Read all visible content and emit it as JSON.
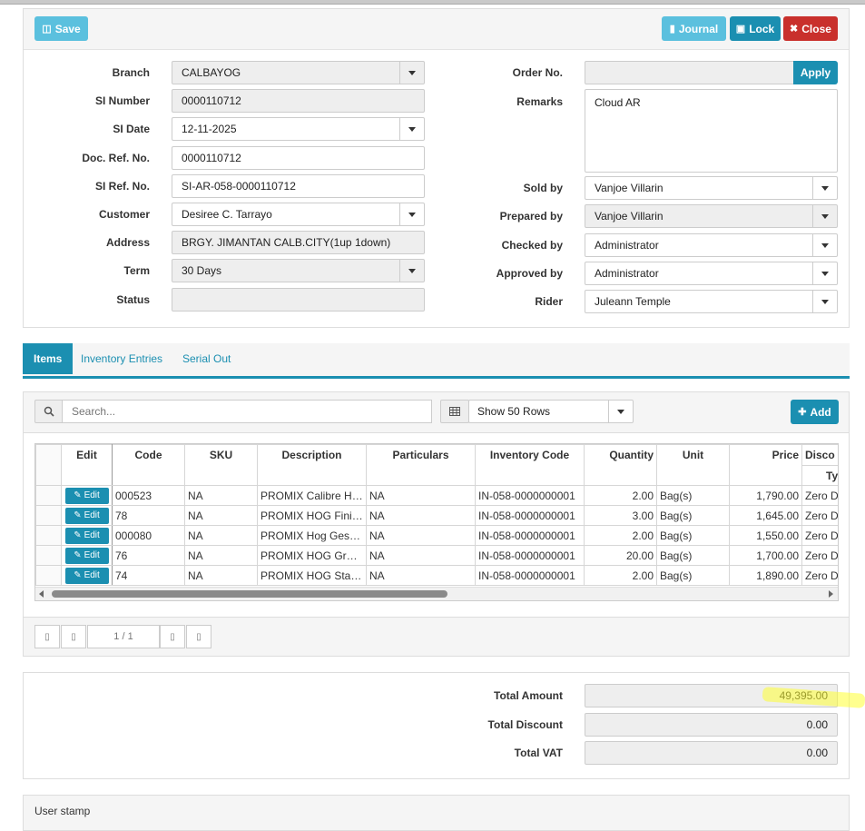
{
  "toolbar": {
    "save": "Save",
    "journal": "Journal",
    "lock": "Lock",
    "close": "Close"
  },
  "form": {
    "branch_label": "Branch",
    "branch": "CALBAYOG",
    "si_number_label": "SI Number",
    "si_number": "0000110712",
    "si_date_label": "SI Date",
    "si_date": "12-11-2025",
    "doc_ref_label": "Doc. Ref. No.",
    "doc_ref": "0000110712",
    "si_ref_label": "SI Ref. No.",
    "si_ref": "SI-AR-058-0000110712",
    "customer_label": "Customer",
    "customer": "Desiree C. Tarrayo",
    "address_label": "Address",
    "address": "BRGY. JIMANTAN CALB.CITY(1up 1down)",
    "term_label": "Term",
    "term": "30 Days",
    "status_label": "Status",
    "status": "",
    "order_no_label": "Order No.",
    "order_no": "",
    "apply": "Apply",
    "remarks_label": "Remarks",
    "remarks": "Cloud AR",
    "sold_by_label": "Sold by",
    "sold_by": "Vanjoe Villarin",
    "prepared_by_label": "Prepared by",
    "prepared_by": "Vanjoe Villarin",
    "checked_by_label": "Checked by",
    "checked_by": "Administrator",
    "approved_by_label": "Approved by",
    "approved_by": "Administrator",
    "rider_label": "Rider",
    "rider": "Juleann Temple"
  },
  "tabs": [
    "Items",
    "Inventory Entries",
    "Serial Out"
  ],
  "items": {
    "search_placeholder": "Search...",
    "rows_option": "Show 50 Rows",
    "add": "Add",
    "columns": [
      "Edit",
      "Code",
      "SKU",
      "Description",
      "Particulars",
      "Inventory Code",
      "Quantity",
      "Unit",
      "Price",
      "Disco",
      "Typ"
    ],
    "edit_label": "Edit",
    "rows": [
      {
        "code": "000523",
        "sku": "NA",
        "description": "PROMIX Calibre Hog Grower",
        "particulars": "NA",
        "inventory_code": "IN-058-0000000001",
        "quantity": "2.00",
        "unit": "Bag(s)",
        "price": "1,790.00",
        "disc": "Zero Dis"
      },
      {
        "code": "78",
        "sku": "NA",
        "description": "PROMIX HOG Finisher",
        "particulars": "NA",
        "inventory_code": "IN-058-0000000001",
        "quantity": "3.00",
        "unit": "Bag(s)",
        "price": "1,645.00",
        "disc": "Zero Dis"
      },
      {
        "code": "000080",
        "sku": "NA",
        "description": "PROMIX Hog Gestating",
        "particulars": "NA",
        "inventory_code": "IN-058-0000000001",
        "quantity": "2.00",
        "unit": "Bag(s)",
        "price": "1,550.00",
        "disc": "Zero Dis"
      },
      {
        "code": "76",
        "sku": "NA",
        "description": "PROMIX HOG Grower",
        "particulars": "NA",
        "inventory_code": "IN-058-0000000001",
        "quantity": "20.00",
        "unit": "Bag(s)",
        "price": "1,700.00",
        "disc": "Zero Dis"
      },
      {
        "code": "74",
        "sku": "NA",
        "description": "PROMIX HOG Starter",
        "particulars": "NA",
        "inventory_code": "IN-058-0000000001",
        "quantity": "2.00",
        "unit": "Bag(s)",
        "price": "1,890.00",
        "disc": "Zero Dis"
      }
    ],
    "page_info": "1 / 1"
  },
  "totals": {
    "total_amount_label": "Total Amount",
    "total_amount": "49,395.00",
    "total_discount_label": "Total Discount",
    "total_discount": "0.00",
    "total_vat_label": "Total VAT",
    "total_vat": "0.00"
  },
  "user_stamp": "User stamp",
  "colors": {
    "accent": "#1b8fb1",
    "save": "#5bc0de",
    "close": "#c9302c",
    "highlight": "#ffff33"
  }
}
